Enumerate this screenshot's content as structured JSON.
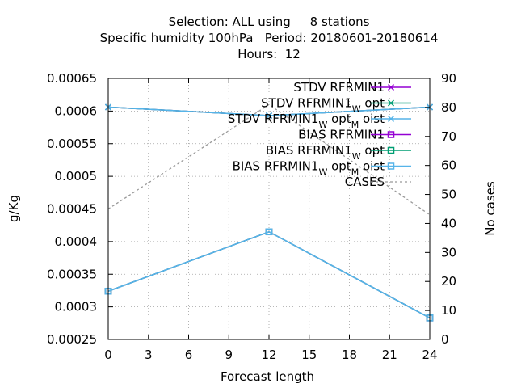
{
  "chart_data": {
    "type": "line",
    "title_lines": [
      "Selection: ALL using     8 stations",
      "Specific humidity 100hPa   Period: 20180601-20180614",
      "Hours:  12"
    ],
    "xlabel": "Forecast length",
    "ylabel": "g/Kg",
    "y2label": "No cases",
    "xlim": [
      0,
      24
    ],
    "ylim": [
      0.00025,
      0.00065
    ],
    "y2lim": [
      0,
      90
    ],
    "xticks": [
      0,
      3,
      6,
      9,
      12,
      15,
      18,
      21,
      24
    ],
    "yticks": [
      "0.00025",
      "0.0003",
      "0.00035",
      "0.0004",
      "0.00045",
      "0.0005",
      "0.00055",
      "0.0006",
      "0.00065"
    ],
    "y2ticks": [
      0,
      10,
      20,
      30,
      40,
      50,
      60,
      70,
      80,
      90
    ],
    "grid": true,
    "legend_position": "top-right",
    "series": [
      {
        "name": "STDV RFRMIN1",
        "legend_base": "STDV RFRMIN1",
        "legend_tail": [],
        "color": "#9400d3",
        "marker": "x",
        "axis": "y",
        "x": [
          0,
          12,
          24
        ],
        "values": [
          0.000606,
          0.000593,
          0.000606
        ]
      },
      {
        "name": "STDV RFRMIN1_W opt",
        "legend_base": "STDV RFRMIN1",
        "legend_tail": [
          {
            "sub": "W"
          },
          {
            "text": " opt"
          }
        ],
        "color": "#009e73",
        "marker": "x",
        "axis": "y",
        "x": [
          0,
          12,
          24
        ],
        "values": [
          0.000606,
          0.000593,
          0.000606
        ]
      },
      {
        "name": "STDV RFRMIN1_W opt_M oist",
        "legend_base": "STDV RFRMIN1",
        "legend_tail": [
          {
            "sub": "W"
          },
          {
            "text": " opt"
          },
          {
            "sub": "M"
          },
          {
            "text": " oist"
          }
        ],
        "color": "#56b4e9",
        "marker": "x",
        "axis": "y",
        "x": [
          0,
          12,
          24
        ],
        "values": [
          0.000606,
          0.000593,
          0.000606
        ]
      },
      {
        "name": "BIAS RFRMIN1",
        "legend_base": "BIAS RFRMIN1",
        "legend_tail": [],
        "color": "#9400d3",
        "marker": "square",
        "axis": "y",
        "x": [
          0,
          12,
          24
        ],
        "values": [
          0.000324,
          0.000415,
          0.000283
        ]
      },
      {
        "name": "BIAS RFRMIN1_W opt",
        "legend_base": "BIAS RFRMIN1",
        "legend_tail": [
          {
            "sub": "W"
          },
          {
            "text": " opt"
          }
        ],
        "color": "#009e73",
        "marker": "square",
        "axis": "y",
        "x": [
          0,
          12,
          24
        ],
        "values": [
          0.000324,
          0.000415,
          0.000283
        ]
      },
      {
        "name": "BIAS RFRMIN1_W opt_M oist",
        "legend_base": "BIAS RFRMIN1",
        "legend_tail": [
          {
            "sub": "W"
          },
          {
            "text": " opt"
          },
          {
            "sub": "M"
          },
          {
            "text": " oist"
          }
        ],
        "color": "#56b4e9",
        "marker": "square",
        "axis": "y",
        "x": [
          0,
          12,
          24
        ],
        "values": [
          0.000324,
          0.000415,
          0.000283
        ]
      },
      {
        "name": "CASES",
        "legend_base": "CASES",
        "legend_tail": [],
        "color": "#999999",
        "marker": "none",
        "dashed": true,
        "axis": "y2",
        "x": [
          0,
          12,
          24
        ],
        "values": [
          45,
          81,
          43
        ]
      }
    ]
  }
}
